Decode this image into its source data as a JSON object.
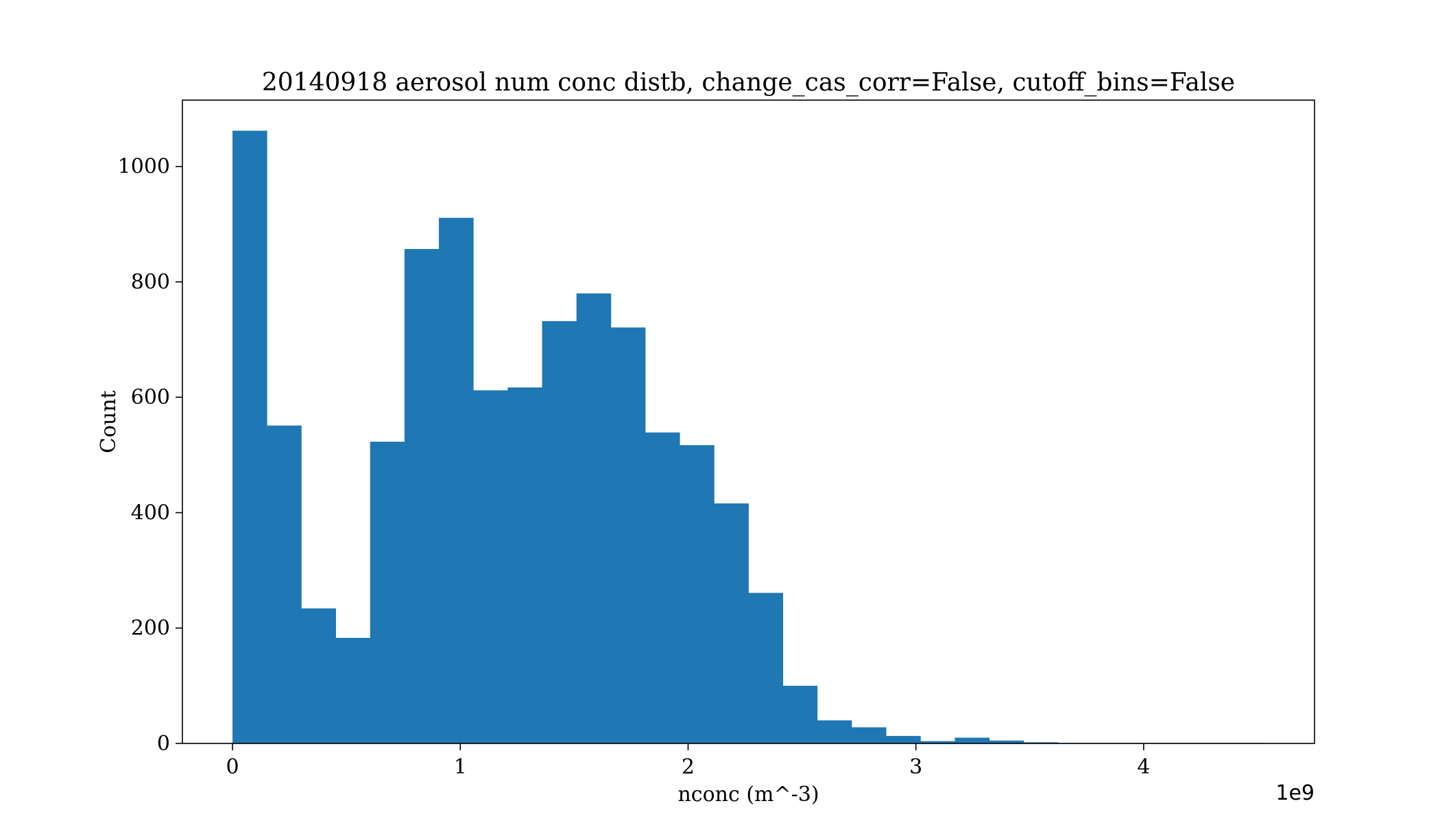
{
  "chart_data": {
    "type": "bar",
    "title": "20140918 aerosol num conc distb, change_cas_corr=False, cutoff_bins=False",
    "xlabel": "nconc (m^-3)",
    "ylabel": "Count",
    "x_offset_label": "1e9",
    "xlim": [
      -0.22,
      4.75
    ],
    "ylim": [
      0,
      1115
    ],
    "xticks": [
      0,
      1,
      2,
      3,
      4
    ],
    "xtick_labels": [
      "0",
      "1",
      "2",
      "3",
      "4"
    ],
    "yticks": [
      0,
      200,
      400,
      600,
      800,
      1000
    ],
    "ytick_labels": [
      "0",
      "200",
      "400",
      "600",
      "800",
      "1000"
    ],
    "grid": false,
    "legend": false,
    "bar_color": "#1f77b4",
    "bin_width": 0.151,
    "bin_start": 0.0,
    "values": [
      1062,
      551,
      234,
      183,
      523,
      857,
      911,
      612,
      617,
      732,
      780,
      721,
      539,
      517,
      416,
      261,
      100,
      40,
      28,
      13,
      4,
      10,
      5,
      2,
      1,
      1,
      1,
      1,
      1,
      1
    ]
  }
}
